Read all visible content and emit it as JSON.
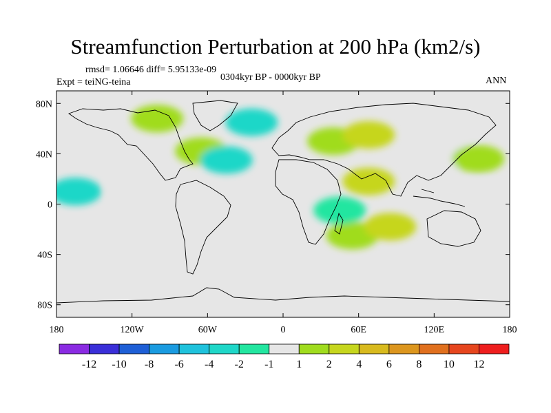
{
  "chart_data": {
    "type": "heatmap",
    "title": "Streamfunction Perturbation at 200 hPa (km2/s)",
    "subtitle_stats": "rmsd= 1.06646 diff= 5.95133e-09",
    "center_label": "0304kyr BP - 0000kyr BP",
    "left_label": "Expt = teiNG-teina",
    "right_label": "ANN",
    "x_axis": {
      "range": [
        -180,
        180
      ],
      "ticks": [
        -180,
        -120,
        -60,
        0,
        60,
        120,
        180
      ],
      "tick_labels": [
        "180",
        "120W",
        "60W",
        "0",
        "60E",
        "120E",
        "180"
      ]
    },
    "y_axis": {
      "range": [
        -90,
        90
      ],
      "ticks": [
        80,
        40,
        0,
        -40,
        -80
      ],
      "tick_labels": [
        "80N",
        "40N",
        "0",
        "40S",
        "80S"
      ]
    },
    "colorbar": {
      "levels": [
        -12,
        -10,
        -8,
        -6,
        -4,
        -2,
        -1,
        1,
        2,
        4,
        6,
        8,
        10,
        12
      ],
      "labels": [
        "-12",
        "-10",
        "-8",
        "-6",
        "-4",
        "-2",
        "-1",
        "1",
        "2",
        "4",
        "6",
        "8",
        "10",
        "12"
      ],
      "colors": [
        "#8a2be2",
        "#3a2fd8",
        "#1e5fd6",
        "#1a9be0",
        "#1fc2dc",
        "#1fd7c8",
        "#23e6a0",
        "#e6e6e6",
        "#a0dc1e",
        "#c6d61e",
        "#d8ba1e",
        "#dc961e",
        "#e0701e",
        "#e6461e",
        "#ee1e1e"
      ]
    },
    "anomalies": [
      {
        "lon": -100,
        "lat": 68,
        "value": 2
      },
      {
        "lon": -65,
        "lat": 42,
        "value": 2
      },
      {
        "lon": -45,
        "lat": 35,
        "value": -2
      },
      {
        "lon": -25,
        "lat": 65,
        "value": -2
      },
      {
        "lon": -120,
        "lat": 12,
        "value": 1
      },
      {
        "lon": -165,
        "lat": 10,
        "value": -2
      },
      {
        "lon": -110,
        "lat": -25,
        "value": 1
      },
      {
        "lon": -175,
        "lat": -30,
        "value": 1
      },
      {
        "lon": 40,
        "lat": 50,
        "value": 2
      },
      {
        "lon": 68,
        "lat": 55,
        "value": 4
      },
      {
        "lon": 140,
        "lat": 60,
        "value": 1
      },
      {
        "lon": 130,
        "lat": 38,
        "value": 1
      },
      {
        "lon": 155,
        "lat": 36,
        "value": 2
      },
      {
        "lon": 68,
        "lat": 18,
        "value": 4
      },
      {
        "lon": 155,
        "lat": 8,
        "value": 1
      },
      {
        "lon": 55,
        "lat": -25,
        "value": 2
      },
      {
        "lon": 85,
        "lat": -18,
        "value": 4
      },
      {
        "lon": 135,
        "lat": -30,
        "value": 1
      },
      {
        "lon": 45,
        "lat": -5,
        "value": -1
      },
      {
        "lon": 35,
        "lat": -65,
        "value": 1
      },
      {
        "lon": -15,
        "lat": 5,
        "value": 1
      }
    ]
  }
}
